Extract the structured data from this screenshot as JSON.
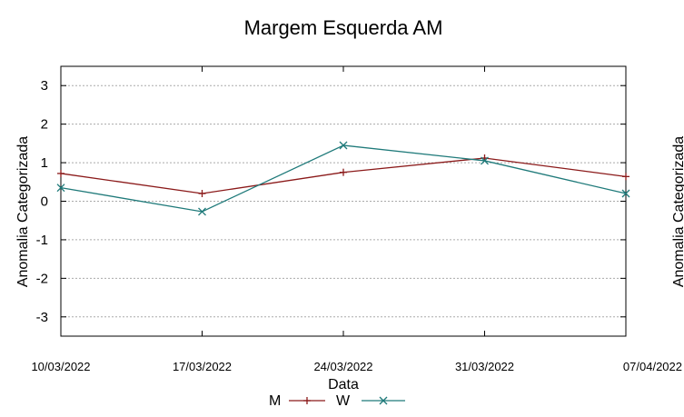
{
  "chart_data": {
    "type": "line",
    "title": "Margem Esquerda AM",
    "xlabel": "Data",
    "ylabel": "Anomalia Categorizada",
    "clipped_right_ylabel": "Anomalia Categorizada",
    "x": [
      "10/03/2022",
      "17/03/2022",
      "24/03/2022",
      "31/03/2022",
      "07/04/2022"
    ],
    "xtick_labels": [
      "10/03/2022",
      "17/03/2022",
      "24/03/2022",
      "31/03/2022",
      "07/04/2022"
    ],
    "ylim": [
      -3.5,
      3.5
    ],
    "yticks": [
      -3,
      -2,
      -1,
      0,
      1,
      2,
      3
    ],
    "ytick_labels": [
      "-3",
      "-2",
      "-1",
      "0",
      "1",
      "2",
      "3"
    ],
    "grid": true,
    "legend": "bottom",
    "series": [
      {
        "name": "M",
        "marker": "+",
        "color": "#8b1a1a",
        "values": [
          0.72,
          0.2,
          0.75,
          1.12,
          0.64
        ]
      },
      {
        "name": "W",
        "marker": "x",
        "color": "#1f7a7a",
        "values": [
          0.35,
          -0.27,
          1.45,
          1.05,
          0.2
        ]
      }
    ]
  }
}
